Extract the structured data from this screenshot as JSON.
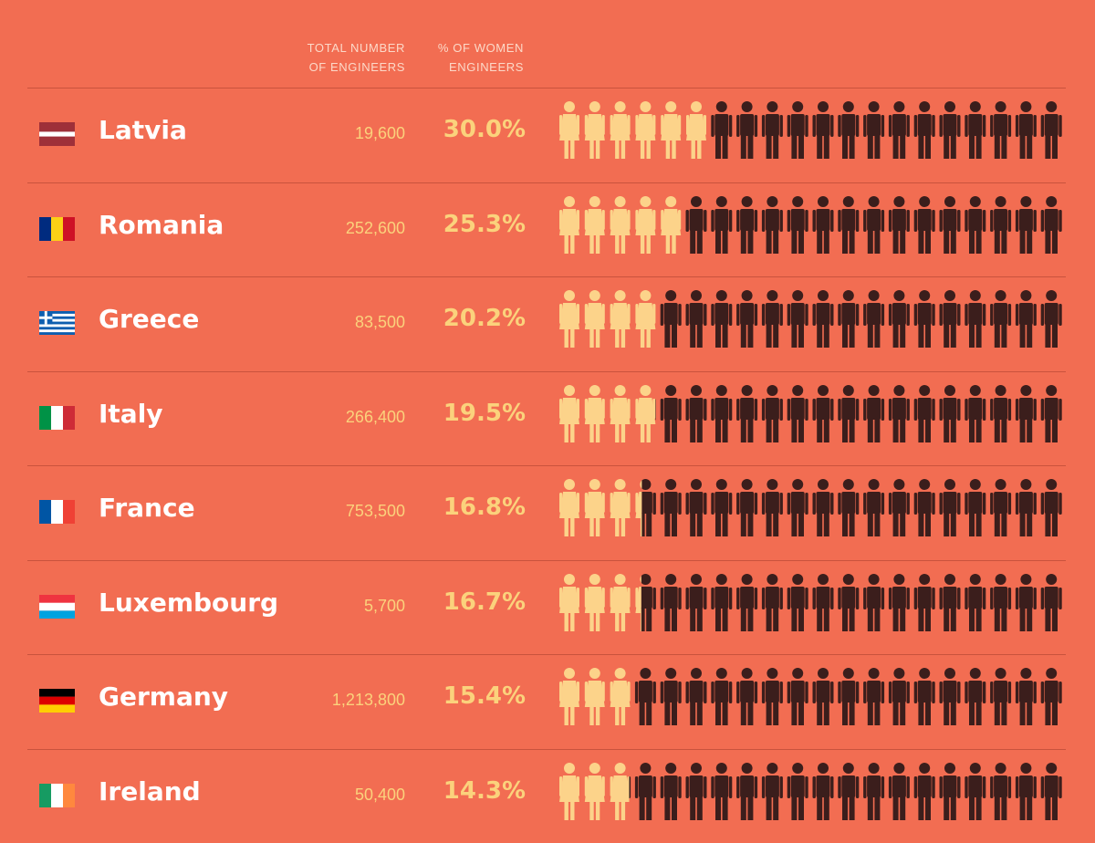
{
  "header": {
    "total_label": "TOTAL NUMBER\nOF ENGINEERS",
    "pct_label": "% OF WOMEN\nENGINEERS"
  },
  "colors": {
    "background": "#f26d52",
    "women": "#fcd38a",
    "men": "#3b1e1c",
    "divider": "#c9533d"
  },
  "chart_data": {
    "type": "pictogram",
    "icons_per_row": 20,
    "series": [
      {
        "name": "Women",
        "color": "#fcd38a"
      },
      {
        "name": "Men",
        "color": "#3b1e1c"
      }
    ],
    "rows": [
      {
        "country": "Latvia",
        "flag": "latvia",
        "total": "19,600",
        "pct_label": "30.0%",
        "pct": 30.0
      },
      {
        "country": "Romania",
        "flag": "romania",
        "total": "252,600",
        "pct_label": "25.3%",
        "pct": 25.3
      },
      {
        "country": "Greece",
        "flag": "greece",
        "total": "83,500",
        "pct_label": "20.2%",
        "pct": 20.2
      },
      {
        "country": "Italy",
        "flag": "italy",
        "total": "266,400",
        "pct_label": "19.5%",
        "pct": 19.5
      },
      {
        "country": "France",
        "flag": "france",
        "total": "753,500",
        "pct_label": "16.8%",
        "pct": 16.8
      },
      {
        "country": "Luxembourg",
        "flag": "luxembourg",
        "total": "5,700",
        "pct_label": "16.7%",
        "pct": 16.7
      },
      {
        "country": "Germany",
        "flag": "germany",
        "total": "1,213,800",
        "pct_label": "15.4%",
        "pct": 15.4
      },
      {
        "country": "Ireland",
        "flag": "ireland",
        "total": "50,400",
        "pct_label": "14.3%",
        "pct": 14.3
      }
    ]
  }
}
